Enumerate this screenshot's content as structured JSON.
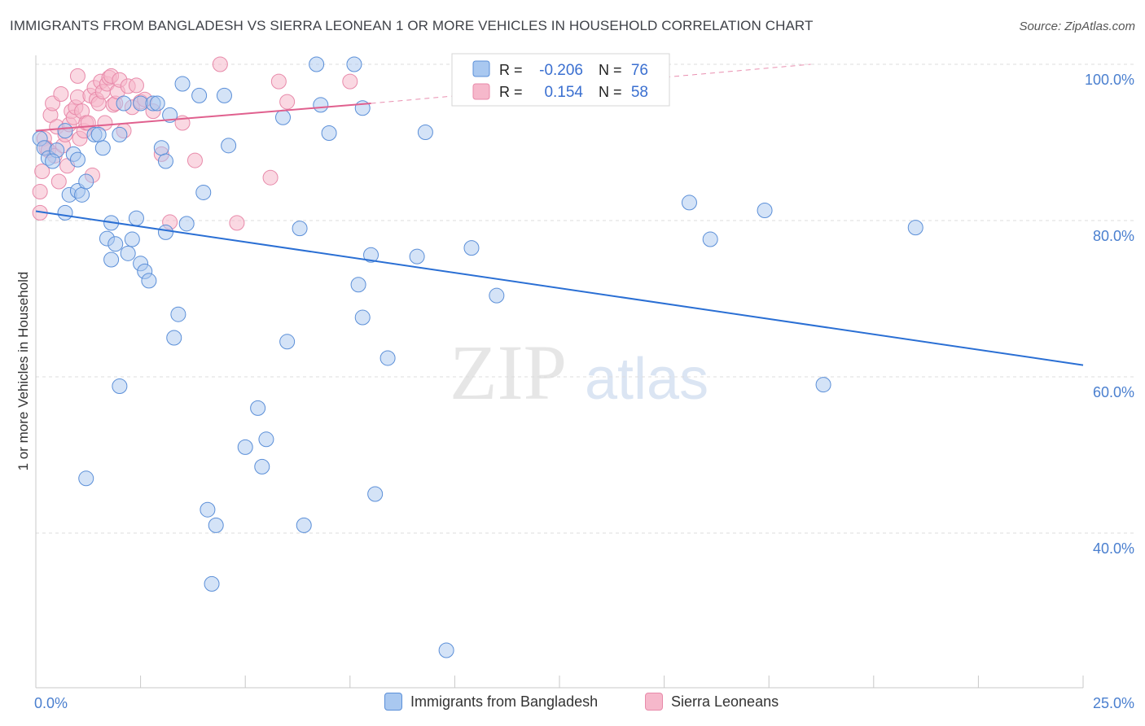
{
  "header": {
    "title": "IMMIGRANTS FROM BANGLADESH VS SIERRA LEONEAN 1 OR MORE VEHICLES IN HOUSEHOLD CORRELATION CHART",
    "source": "Source: ZipAtlas.com"
  },
  "watermark": {
    "zip": "ZIP",
    "atlas": "atlas"
  },
  "stats": {
    "blue": {
      "r_label": "R =",
      "r_value": "-0.206",
      "n_label": "N =",
      "n_value": "76"
    },
    "pink": {
      "r_label": "R =",
      "r_value": "0.154",
      "n_label": "N =",
      "n_value": "58"
    }
  },
  "legend": {
    "blue_label": "Immigrants from Bangladesh",
    "pink_label": "Sierra Leoneans"
  },
  "colors": {
    "blue_fill": "#a9c8f0",
    "blue_stroke": "#5b8fd8",
    "blue_line": "#2a6fd4",
    "pink_fill": "#f6b8cb",
    "pink_stroke": "#e88aaa",
    "pink_line": "#e0608e",
    "axis_text": "#4a7fcf"
  },
  "chart_data": {
    "type": "scatter",
    "title": "IMMIGRANTS FROM BANGLADESH VS SIERRA LEONEAN 1 OR MORE VEHICLES IN HOUSEHOLD CORRELATION CHART",
    "xlabel": "",
    "ylabel": "1 or more Vehicles in Household",
    "xlim": [
      0,
      25
    ],
    "ylim": [
      20,
      101
    ],
    "x_tick_labels": [
      "0.0%",
      "25.0%"
    ],
    "y_ticks": [
      100,
      80,
      60,
      40
    ],
    "y_tick_labels": [
      "100.0%",
      "80.0%",
      "60.0%",
      "40.0%"
    ],
    "grid": true,
    "legend_position": "bottom-center",
    "series": [
      {
        "name": "Immigrants from Bangladesh",
        "points": [
          [
            0.1,
            90.5
          ],
          [
            0.2,
            89.3
          ],
          [
            0.3,
            88.0
          ],
          [
            0.5,
            89.0
          ],
          [
            0.4,
            87.6
          ],
          [
            0.7,
            91.5
          ],
          [
            0.9,
            88.5
          ],
          [
            1.0,
            87.8
          ],
          [
            0.7,
            81.0
          ],
          [
            0.8,
            83.3
          ],
          [
            1.0,
            83.8
          ],
          [
            1.1,
            83.3
          ],
          [
            1.2,
            85.0
          ],
          [
            1.4,
            91.0
          ],
          [
            1.5,
            91.0
          ],
          [
            1.6,
            89.3
          ],
          [
            1.7,
            77.7
          ],
          [
            1.8,
            79.7
          ],
          [
            1.8,
            75.0
          ],
          [
            1.9,
            77.0
          ],
          [
            2.0,
            91.0
          ],
          [
            2.1,
            95.0
          ],
          [
            2.2,
            75.8
          ],
          [
            2.3,
            77.6
          ],
          [
            2.4,
            80.3
          ],
          [
            2.5,
            95.0
          ],
          [
            2.5,
            74.5
          ],
          [
            2.6,
            73.5
          ],
          [
            2.7,
            72.3
          ],
          [
            2.8,
            95.0
          ],
          [
            2.9,
            95.0
          ],
          [
            3.0,
            89.3
          ],
          [
            3.1,
            87.6
          ],
          [
            3.1,
            78.5
          ],
          [
            3.2,
            93.5
          ],
          [
            3.3,
            65.0
          ],
          [
            3.4,
            68.0
          ],
          [
            3.5,
            97.5
          ],
          [
            3.6,
            79.6
          ],
          [
            3.9,
            96.0
          ],
          [
            4.0,
            83.6
          ],
          [
            4.1,
            43.0
          ],
          [
            4.2,
            33.5
          ],
          [
            4.3,
            41.0
          ],
          [
            4.5,
            96.0
          ],
          [
            4.6,
            89.6
          ],
          [
            5.0,
            51.0
          ],
          [
            5.3,
            56.0
          ],
          [
            5.4,
            48.5
          ],
          [
            5.5,
            52.0
          ],
          [
            5.9,
            93.2
          ],
          [
            6.0,
            64.5
          ],
          [
            6.3,
            79.0
          ],
          [
            6.4,
            41.0
          ],
          [
            6.7,
            100.0
          ],
          [
            6.8,
            94.8
          ],
          [
            7.0,
            91.2
          ],
          [
            7.6,
            100.0
          ],
          [
            7.7,
            71.8
          ],
          [
            7.8,
            94.4
          ],
          [
            7.8,
            67.6
          ],
          [
            8.0,
            75.6
          ],
          [
            8.1,
            45.0
          ],
          [
            8.4,
            62.4
          ],
          [
            9.1,
            75.4
          ],
          [
            9.3,
            91.3
          ],
          [
            9.8,
            25.0
          ],
          [
            10.4,
            76.5
          ],
          [
            11.0,
            70.4
          ],
          [
            2.0,
            58.8
          ],
          [
            1.2,
            47.0
          ],
          [
            15.6,
            82.3
          ],
          [
            16.1,
            77.6
          ],
          [
            17.4,
            81.3
          ],
          [
            18.8,
            59.0
          ],
          [
            21.0,
            79.1
          ]
        ],
        "trend": {
          "x": [
            0,
            25
          ],
          "y": [
            81.2,
            61.5
          ]
        }
      },
      {
        "name": "Sierra Leoneans",
        "points": [
          [
            0.1,
            81.0
          ],
          [
            0.1,
            83.7
          ],
          [
            0.15,
            86.3
          ],
          [
            0.2,
            90.5
          ],
          [
            0.25,
            89.3
          ],
          [
            0.3,
            89.0
          ],
          [
            0.35,
            93.5
          ],
          [
            0.4,
            95.0
          ],
          [
            0.45,
            88.3
          ],
          [
            0.5,
            92.0
          ],
          [
            0.55,
            85.0
          ],
          [
            0.6,
            96.2
          ],
          [
            0.65,
            89.6
          ],
          [
            0.7,
            91.0
          ],
          [
            0.75,
            87.0
          ],
          [
            0.8,
            92.3
          ],
          [
            0.85,
            94.0
          ],
          [
            0.9,
            93.2
          ],
          [
            0.95,
            94.5
          ],
          [
            1.0,
            95.8
          ],
          [
            1.05,
            90.5
          ],
          [
            1.1,
            94.0
          ],
          [
            1.15,
            91.5
          ],
          [
            1.2,
            92.5
          ],
          [
            1.25,
            92.5
          ],
          [
            1.3,
            96.0
          ],
          [
            1.35,
            85.8
          ],
          [
            1.4,
            97.0
          ],
          [
            1.45,
            95.5
          ],
          [
            1.5,
            95.0
          ],
          [
            1.55,
            97.8
          ],
          [
            1.6,
            96.5
          ],
          [
            1.65,
            92.5
          ],
          [
            1.7,
            97.5
          ],
          [
            1.75,
            98.3
          ],
          [
            1.8,
            98.5
          ],
          [
            1.85,
            94.8
          ],
          [
            1.9,
            95.0
          ],
          [
            1.95,
            96.5
          ],
          [
            2.0,
            98.0
          ],
          [
            2.1,
            91.5
          ],
          [
            2.2,
            97.2
          ],
          [
            2.3,
            94.5
          ],
          [
            2.4,
            97.3
          ],
          [
            2.5,
            95.2
          ],
          [
            2.6,
            95.5
          ],
          [
            2.8,
            94.0
          ],
          [
            3.0,
            88.5
          ],
          [
            3.2,
            79.8
          ],
          [
            3.5,
            92.5
          ],
          [
            3.8,
            87.7
          ],
          [
            4.4,
            100.0
          ],
          [
            4.8,
            79.7
          ],
          [
            5.6,
            85.5
          ],
          [
            5.8,
            97.8
          ],
          [
            6.0,
            95.2
          ],
          [
            7.5,
            97.8
          ],
          [
            1.0,
            98.5
          ]
        ],
        "trend": {
          "x": [
            0,
            8
          ],
          "y": [
            91.5,
            95.0
          ]
        },
        "trend_extension": {
          "x": [
            8,
            18.5
          ],
          "y": [
            95.0,
            100.0
          ]
        }
      }
    ]
  }
}
